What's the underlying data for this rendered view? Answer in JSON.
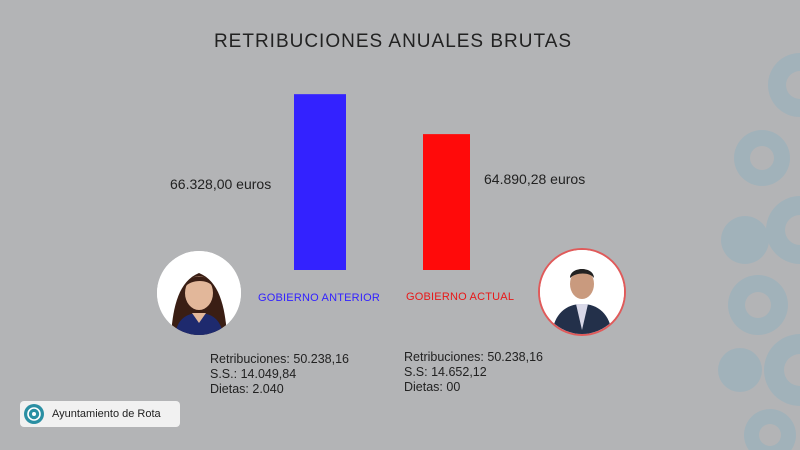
{
  "chart_data": {
    "type": "bar",
    "title": "RETRIBUCIONES ANUALES BRUTAS",
    "categories": [
      "GOBIERNO ANTERIOR",
      "GOBIERNO ACTUAL"
    ],
    "values": [
      66328.0,
      64890.28
    ],
    "value_labels": [
      "66.328,00 euros",
      "64.890,28 euros"
    ],
    "colors": [
      "#3322ff",
      "#ff0a0a"
    ],
    "ylim": [
      60000,
      66550
    ],
    "grid": false,
    "legend": "none"
  },
  "groups": [
    {
      "details": [
        "Retribuciones: 50.238,16",
        "S.S.: 14.049,84",
        "Dietas: 2.040"
      ]
    },
    {
      "details": [
        "Retribuciones: 50.238,16",
        "S.S: 14.652,12",
        "Dietas: 00"
      ]
    }
  ],
  "logo": {
    "text": "Ayuntamiento de Rota",
    "icon": "municipal-emblem-icon",
    "accent": "#2a8fa3"
  },
  "colors": {
    "background": "#b3b4b6",
    "pattern": "#9fb2bb"
  }
}
